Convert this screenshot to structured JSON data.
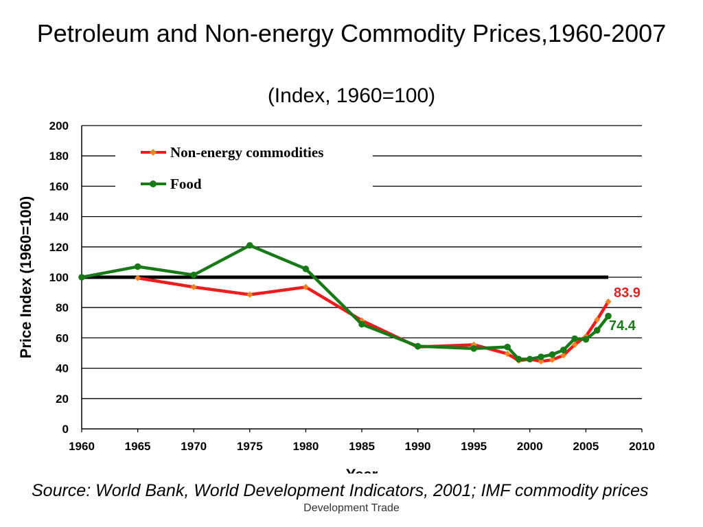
{
  "chart_data": {
    "type": "line",
    "title": "Petroleum and Non-energy Commodity Prices,1960-2007",
    "subtitle": "(Index, 1960=100)",
    "xlabel": "Year",
    "ylabel": "Price Index (1960=100)",
    "xlim": [
      1960,
      2010
    ],
    "ylim": [
      0,
      200
    ],
    "x_ticks": [
      "1960",
      "1965",
      "1970",
      "1975",
      "1980",
      "1985",
      "1990",
      "1995",
      "2000",
      "2005",
      "2010"
    ],
    "y_ticks": [
      "0",
      "20",
      "40",
      "60",
      "80",
      "100",
      "120",
      "140",
      "160",
      "180",
      "200"
    ],
    "grid": true,
    "legend_position": "top-left",
    "reference_line": {
      "y": 100,
      "x_start": 1960,
      "x_end": 2007,
      "color": "#000000"
    },
    "series": [
      {
        "name": "Non-energy commodities",
        "color": "#ee1c1c",
        "marker_color": "#f58220",
        "marker": "diamond",
        "x": [
          1965,
          1970,
          1975,
          1980,
          1985,
          1990,
          1995,
          1998,
          1999,
          2000,
          2001,
          2002,
          2003,
          2004,
          2005,
          2006,
          2007
        ],
        "values": [
          99.5,
          93.5,
          88.5,
          93.5,
          71.5,
          54,
          55.5,
          49.5,
          45,
          46,
          44.5,
          45.5,
          48.5,
          55.5,
          61,
          72,
          83.9
        ],
        "end_label": "83.9"
      },
      {
        "name": "Food",
        "color": "#177a17",
        "marker_color": "#177a17",
        "marker": "circle",
        "x": [
          1960,
          1965,
          1970,
          1975,
          1980,
          1985,
          1990,
          1995,
          1998,
          1999,
          2000,
          2001,
          2002,
          2003,
          2004,
          2005,
          2006,
          2007
        ],
        "values": [
          100,
          107,
          101.5,
          121,
          105.5,
          69,
          54.5,
          53,
          54,
          46,
          46,
          47.5,
          49,
          52,
          59.5,
          59,
          65,
          74.4
        ],
        "end_label": "74.4"
      }
    ]
  },
  "source_note": "Source: World Bank, World Development Indicators, 2001; IMF commodity prices",
  "footer": "Development Trade",
  "colors": {
    "grid": "#000000",
    "reference": "#000000"
  }
}
